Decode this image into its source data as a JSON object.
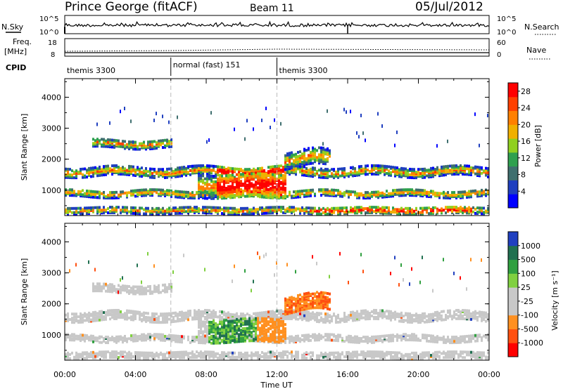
{
  "header": {
    "station": "Prince George (fitACF)",
    "beam": "Beam 11",
    "date": "05/Jul/2012"
  },
  "summary_panels": {
    "nsky_label": "N.Sky",
    "nsearch_label": "N.Search",
    "freq_label_line1": "Freq.",
    "freq_label_line2": "[MHz]",
    "nave_label": "Nave",
    "cpid_label": "CPID",
    "nsky_ticks": [
      "10^5",
      "10^0"
    ],
    "nsearch_ticks": [
      "10^5",
      "10^0"
    ],
    "freq_ticks": [
      "18",
      "8"
    ],
    "nave_ticks": [
      "60",
      "0"
    ]
  },
  "cpid": [
    {
      "label": "themis 3300",
      "start_hour": 0,
      "end_hour": 6
    },
    {
      "label": "normal (fast) 151",
      "start_hour": 6,
      "end_hour": 12
    },
    {
      "label": "themis 3300",
      "start_hour": 12,
      "end_hour": 24
    }
  ],
  "colors": {
    "power_scale": [
      "#0000ff",
      "#1f3fbf",
      "#3f6f6f",
      "#2fa04f",
      "#90d020",
      "#f0b000",
      "#ff8000",
      "#ff4000",
      "#ff0000"
    ],
    "velocity_scale": [
      "#2040c0",
      "#207050",
      "#30a040",
      "#80d040",
      "#c8c8c8",
      "#c8c8c8",
      "#ff9020",
      "#ff5010",
      "#ff0000"
    ]
  },
  "chart_data": [
    {
      "type": "heatmap",
      "title": "",
      "xlabel": "",
      "ylabel": "Slant Range [km]",
      "x_ticks": [
        "00:00",
        "04:00",
        "08:00",
        "12:00",
        "16:00",
        "20:00",
        "00:00"
      ],
      "xlim_hours": [
        0,
        24
      ],
      "y_ticks": [
        "1000",
        "2000",
        "3000",
        "4000"
      ],
      "ylim_km": [
        180,
        4600
      ],
      "colorbar_label": "Power [dB]",
      "colorbar_ticks": [
        "4",
        "8",
        "12",
        "16",
        "20",
        "24",
        "28"
      ],
      "colorbar_range": [
        0,
        30
      ],
      "vertical_dashed_lines_hours": [
        6,
        12
      ]
    },
    {
      "type": "heatmap",
      "title": "",
      "xlabel": "Time UT",
      "ylabel": "Slant Range [km]",
      "x_ticks": [
        "00:00",
        "04:00",
        "08:00",
        "12:00",
        "16:00",
        "20:00",
        "00:00"
      ],
      "xlim_hours": [
        0,
        24
      ],
      "y_ticks": [
        "1000",
        "2000",
        "3000",
        "4000"
      ],
      "ylim_km": [
        180,
        4600
      ],
      "colorbar_label": "Velocity [m s⁻¹]",
      "colorbar_ticks": [
        "1000",
        "500",
        "100",
        "25",
        "-25",
        "-100",
        "-500",
        "-1000"
      ],
      "vertical_dashed_lines_hours": [
        6,
        12
      ]
    }
  ]
}
